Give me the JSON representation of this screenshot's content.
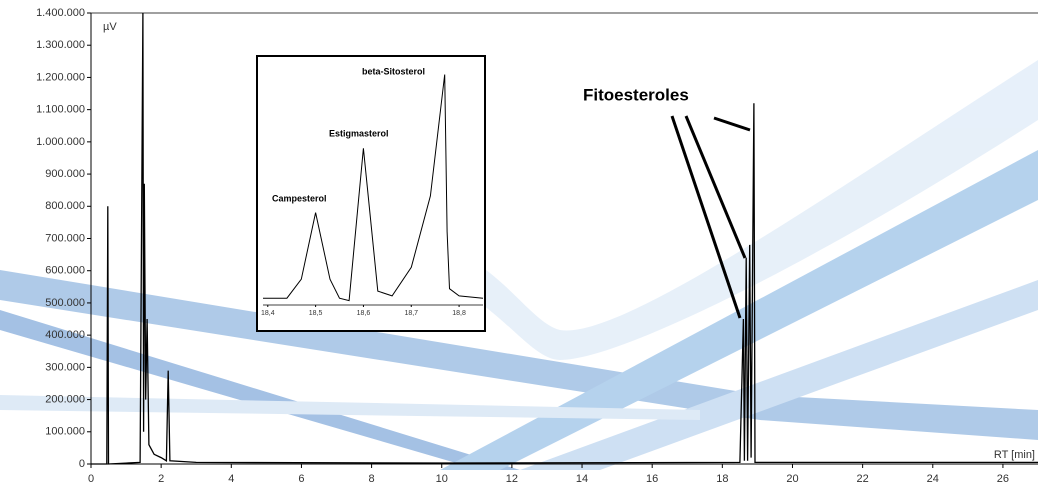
{
  "chart_data": [
    {
      "type": "line",
      "y_label": "µV",
      "x_label": "RT [min]",
      "annotations": [
        "Fitoesteroles"
      ],
      "xlim": [
        0,
        27
      ],
      "ylim": [
        0,
        1400000
      ],
      "xticks": [
        0,
        2,
        4,
        6,
        8,
        10,
        12,
        14,
        16,
        18,
        20,
        22,
        24,
        26
      ],
      "yticks": [
        {
          "value": 0,
          "label": "0"
        },
        {
          "value": 100000,
          "label": "100.000"
        },
        {
          "value": 200000,
          "label": "200.000"
        },
        {
          "value": 300000,
          "label": "300.000"
        },
        {
          "value": 400000,
          "label": "400.000"
        },
        {
          "value": 500000,
          "label": "500.000"
        },
        {
          "value": 600000,
          "label": "600.000"
        },
        {
          "value": 700000,
          "label": "700.000"
        },
        {
          "value": 800000,
          "label": "800.000"
        },
        {
          "value": 900000,
          "label": "900.000"
        },
        {
          "value": 1000000,
          "label": "1.000.000"
        },
        {
          "value": 1100000,
          "label": "1.100.000"
        },
        {
          "value": 1200000,
          "label": "1.200.000"
        },
        {
          "value": 1300000,
          "label": "1.300.000"
        },
        {
          "value": 1400000,
          "label": "1.400.000"
        }
      ],
      "x": [
        0,
        0.45,
        0.48,
        0.5,
        1.4,
        1.48,
        1.5,
        1.52,
        1.56,
        1.6,
        1.65,
        1.8,
        2.0,
        2.15,
        2.2,
        2.25,
        3,
        10,
        18.5,
        18.6,
        18.63,
        18.68,
        18.72,
        18.78,
        18.82,
        18.9,
        18.93,
        27
      ],
      "series": [
        {
          "color": "#000000",
          "values": [
            0,
            0,
            800000,
            0,
            5000,
            1400000,
            100000,
            870000,
            200000,
            450000,
            60000,
            30000,
            20000,
            10000,
            290000,
            10000,
            5000,
            3000,
            5000,
            450000,
            10000,
            640000,
            10000,
            680000,
            20000,
            1120000,
            5000,
            5000
          ]
        }
      ]
    },
    {
      "type": "line",
      "annotations": [
        "Campesterol",
        "Estigmasterol",
        "beta-Sitosterol"
      ],
      "xlim": [
        18.39,
        18.85
      ],
      "ylim": [
        0,
        100
      ],
      "xticks": [
        {
          "value": 18.4,
          "label": "18,4"
        },
        {
          "value": 18.5,
          "label": "18,5"
        },
        {
          "value": 18.6,
          "label": "18,6"
        },
        {
          "value": 18.7,
          "label": "18,7"
        },
        {
          "value": 18.8,
          "label": "18,8"
        }
      ],
      "x": [
        18.39,
        18.44,
        18.47,
        18.5,
        18.53,
        18.55,
        18.57,
        18.6,
        18.63,
        18.66,
        18.7,
        18.74,
        18.77,
        18.775,
        18.78,
        18.8,
        18.85
      ],
      "series": [
        {
          "color": "#000000",
          "values": [
            2,
            2,
            10,
            38,
            10,
            2,
            1,
            65,
            5,
            3,
            15,
            45,
            96,
            30,
            6,
            3,
            2
          ]
        }
      ]
    }
  ]
}
